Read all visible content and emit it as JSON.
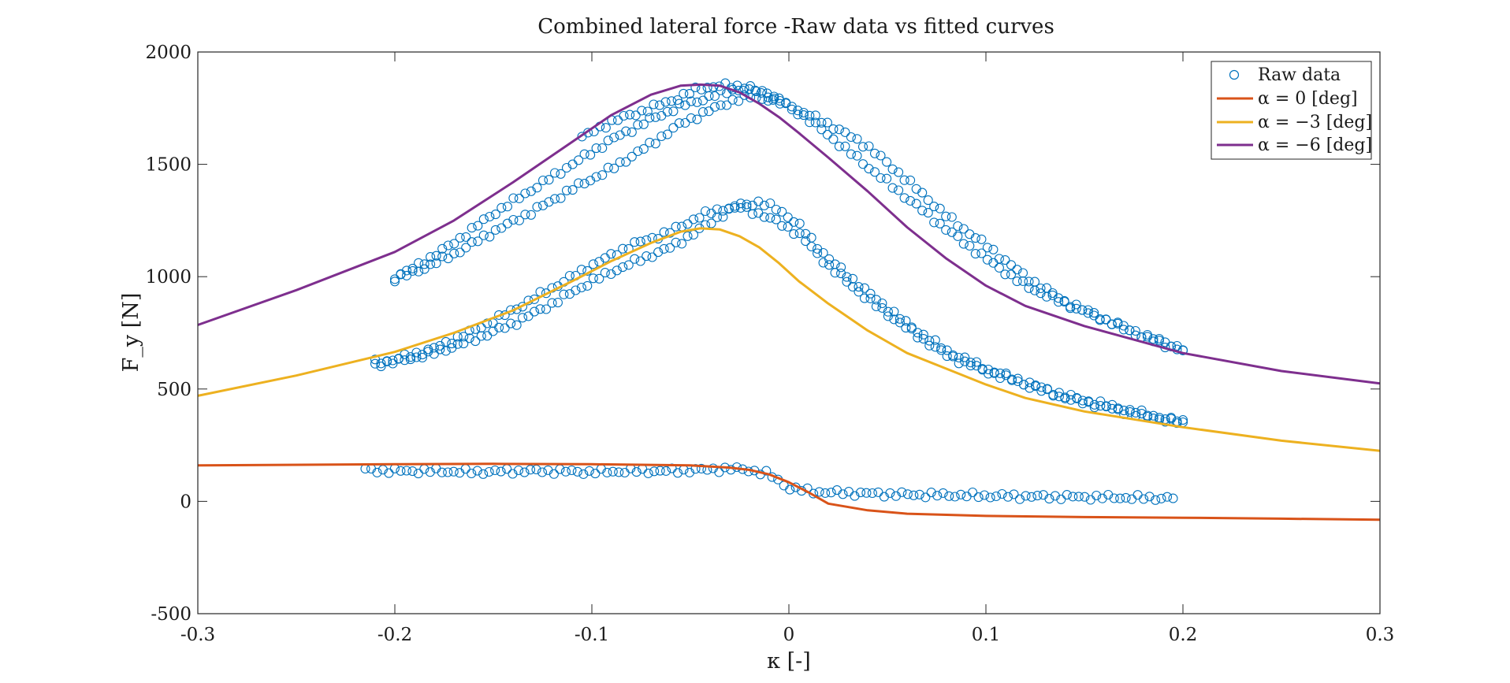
{
  "chart_data": {
    "type": "scatter+line",
    "title": "Combined lateral force -Raw data vs fitted curves",
    "xlabel": "κ [-]",
    "ylabel": "F_y [N]",
    "xlim": [
      -0.3,
      0.3
    ],
    "ylim": [
      -500,
      2000
    ],
    "xticks": [
      -0.3,
      -0.2,
      -0.1,
      0,
      0.1,
      0.2,
      0.3
    ],
    "xtick_labels": [
      "-0.3",
      "-0.2",
      "-0.1",
      "0",
      "0.1",
      "0.2",
      "0.3"
    ],
    "yticks": [
      -500,
      0,
      500,
      1000,
      1500,
      2000
    ],
    "ytick_labels": [
      "-500",
      "0",
      "500",
      "1000",
      "1500",
      "2000"
    ],
    "grid": false,
    "legend_position": "top-right",
    "legend": [
      {
        "label": "Raw data",
        "kind": "marker",
        "color": "#0072BD"
      },
      {
        "label": "α = 0 [deg]",
        "kind": "line",
        "color": "#D95319"
      },
      {
        "label": "α = −3 [deg]",
        "kind": "line",
        "color": "#EDB120"
      },
      {
        "label": "α = −6 [deg]",
        "kind": "line",
        "color": "#7E2F8E"
      }
    ],
    "raw_series": [
      {
        "name": "Raw data",
        "color": "#0072BD",
        "x": [
          -0.215,
          -0.2,
          -0.18,
          -0.16,
          -0.14,
          -0.12,
          -0.1,
          -0.08,
          -0.06,
          -0.045,
          -0.03,
          -0.02,
          -0.01,
          -0.005,
          0.0,
          0.01,
          0.02,
          0.04,
          0.06,
          0.08,
          0.1,
          0.12,
          0.14,
          0.16,
          0.18,
          0.195
        ],
        "y": [
          140,
          135,
          135,
          130,
          135,
          135,
          130,
          135,
          135,
          140,
          145,
          140,
          120,
          90,
          60,
          45,
          40,
          35,
          30,
          28,
          25,
          22,
          20,
          18,
          15,
          15
        ]
      },
      {
        "name": "Raw data",
        "color": "#0072BD",
        "x": [
          -0.21,
          -0.2,
          -0.18,
          -0.16,
          -0.14,
          -0.12,
          -0.1,
          -0.08,
          -0.06,
          -0.045,
          -0.035,
          -0.025,
          -0.015,
          -0.005,
          0.005,
          0.02,
          0.04,
          0.06,
          0.08,
          0.1,
          0.12,
          0.14,
          0.16,
          0.18,
          0.2
        ],
        "y": [
          620,
          630,
          680,
          760,
          850,
          950,
          1050,
          1140,
          1200,
          1270,
          1300,
          1310,
          1280,
          1240,
          1190,
          1050,
          900,
          770,
          650,
          580,
          520,
          460,
          420,
          380,
          355
        ]
      },
      {
        "name": "Raw data",
        "color": "#0072BD",
        "x": [
          -0.21,
          -0.2,
          -0.18,
          -0.16,
          -0.14,
          -0.12,
          -0.1,
          -0.08,
          -0.06,
          -0.045,
          -0.035,
          -0.025,
          -0.015,
          -0.005,
          0.005,
          0.02,
          0.04,
          0.06,
          0.08,
          0.1,
          0.12,
          0.14,
          0.16,
          0.18,
          0.2
        ],
        "y": [
          610,
          620,
          660,
          720,
          790,
          880,
          980,
          1060,
          1130,
          1210,
          1270,
          1320,
          1330,
          1300,
          1230,
          1080,
          930,
          790,
          670,
          590,
          530,
          470,
          430,
          390,
          345
        ]
      },
      {
        "name": "Raw data",
        "color": "#0072BD",
        "x": [
          -0.2,
          -0.19,
          -0.17,
          -0.15,
          -0.13,
          -0.11,
          -0.09,
          -0.07,
          -0.055,
          -0.04,
          -0.03,
          -0.02,
          -0.01,
          0.0,
          0.01,
          0.02,
          0.04,
          0.06,
          0.08,
          0.1,
          0.12,
          0.14,
          0.16,
          0.18,
          0.2
        ],
        "y": [
          1000,
          1040,
          1150,
          1280,
          1390,
          1500,
          1610,
          1700,
          1760,
          1800,
          1830,
          1840,
          1810,
          1760,
          1700,
          1630,
          1490,
          1350,
          1210,
          1080,
          960,
          880,
          810,
          740,
          680
        ]
      },
      {
        "name": "Raw data",
        "color": "#0072BD",
        "x": [
          -0.2,
          -0.19,
          -0.17,
          -0.15,
          -0.13,
          -0.11,
          -0.09,
          -0.07,
          -0.055,
          -0.04,
          -0.03,
          -0.02,
          -0.01,
          0.0,
          0.01,
          0.02,
          0.04,
          0.06,
          0.08,
          0.1,
          0.12,
          0.14,
          0.16,
          0.18,
          0.2
        ],
        "y": [
          990,
          1020,
          1100,
          1200,
          1290,
          1390,
          1480,
          1590,
          1680,
          1740,
          1780,
          1800,
          1790,
          1760,
          1720,
          1680,
          1580,
          1430,
          1270,
          1140,
          1000,
          890,
          810,
          730,
          670
        ]
      },
      {
        "name": "Raw data",
        "color": "#0072BD",
        "x": [
          -0.105,
          -0.09,
          -0.07,
          -0.055,
          -0.045,
          -0.035,
          -0.025,
          -0.015,
          -0.005
        ],
        "y": [
          1620,
          1690,
          1750,
          1800,
          1840,
          1850,
          1845,
          1820,
          1790
        ]
      }
    ],
    "fit_series": [
      {
        "name": "α = 0 [deg]",
        "color": "#D95319",
        "x": [
          -0.3,
          -0.2,
          -0.15,
          -0.1,
          -0.05,
          -0.03,
          -0.02,
          -0.01,
          0.0,
          0.01,
          0.02,
          0.04,
          0.06,
          0.1,
          0.15,
          0.2,
          0.25,
          0.3
        ],
        "y": [
          160,
          165,
          167,
          165,
          160,
          150,
          140,
          120,
          85,
          40,
          -10,
          -40,
          -55,
          -65,
          -70,
          -73,
          -77,
          -82
        ]
      },
      {
        "name": "α = −3 [deg]",
        "color": "#EDB120",
        "x": [
          -0.3,
          -0.25,
          -0.2,
          -0.17,
          -0.14,
          -0.11,
          -0.09,
          -0.07,
          -0.055,
          -0.045,
          -0.035,
          -0.025,
          -0.015,
          -0.005,
          0.005,
          0.02,
          0.04,
          0.06,
          0.08,
          0.1,
          0.12,
          0.15,
          0.2,
          0.25,
          0.3
        ],
        "y": [
          470,
          560,
          665,
          750,
          850,
          980,
          1070,
          1150,
          1200,
          1215,
          1210,
          1180,
          1130,
          1060,
          980,
          880,
          760,
          660,
          590,
          520,
          460,
          400,
          330,
          270,
          225
        ]
      },
      {
        "name": "α = −6 [deg]",
        "color": "#7E2F8E",
        "x": [
          -0.3,
          -0.25,
          -0.2,
          -0.17,
          -0.14,
          -0.11,
          -0.09,
          -0.07,
          -0.055,
          -0.045,
          -0.035,
          -0.025,
          -0.015,
          -0.005,
          0.005,
          0.02,
          0.04,
          0.06,
          0.08,
          0.1,
          0.12,
          0.15,
          0.2,
          0.25,
          0.3
        ],
        "y": [
          785,
          940,
          1110,
          1250,
          1420,
          1600,
          1720,
          1810,
          1850,
          1855,
          1850,
          1820,
          1770,
          1710,
          1640,
          1530,
          1380,
          1220,
          1080,
          960,
          870,
          780,
          660,
          580,
          525
        ]
      }
    ]
  }
}
